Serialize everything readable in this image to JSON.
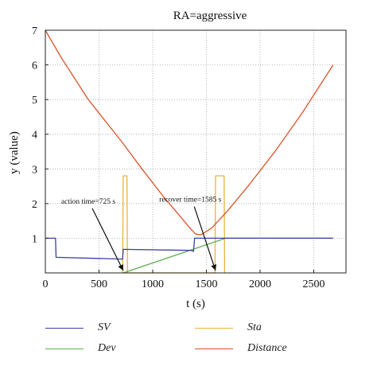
{
  "chart_data": {
    "type": "line",
    "title": "RA=aggressive",
    "xlabel": "t (s)",
    "ylabel": "y (value)",
    "xlim": [
      0,
      2800
    ],
    "ylim": [
      0,
      7
    ],
    "xticks": [
      0,
      500,
      1000,
      1500,
      2000,
      2500
    ],
    "yticks": [
      1,
      2,
      3,
      4,
      5,
      6,
      7
    ],
    "grid": "dotted",
    "legend_placement": "bottom",
    "series": [
      {
        "name": "SV",
        "color": "#3b3fa0",
        "points": [
          [
            0,
            1.0
          ],
          [
            95,
            1.0
          ],
          [
            100,
            0.45
          ],
          [
            710,
            0.4
          ],
          [
            720,
            0.4
          ],
          [
            725,
            0.68
          ],
          [
            1360,
            0.65
          ],
          [
            1380,
            0.62
          ],
          [
            1390,
            1.0
          ],
          [
            2680,
            1.0
          ]
        ]
      },
      {
        "name": "Dev",
        "color": "#5fae4e",
        "points": [
          [
            725,
            0.0
          ],
          [
            1680,
            1.0
          ],
          [
            2680,
            1.0
          ]
        ]
      },
      {
        "name": "Sta",
        "color": "#e6b53a",
        "points": [
          [
            720,
            0.0
          ],
          [
            725,
            2.8
          ],
          [
            760,
            2.8
          ],
          [
            765,
            0.0
          ],
          [
            1580,
            0.0
          ],
          [
            1585,
            2.8
          ],
          [
            1665,
            2.8
          ],
          [
            1670,
            0.0
          ]
        ]
      },
      {
        "name": "Distance",
        "color": "#d9542a",
        "points": [
          [
            0,
            7.0
          ],
          [
            150,
            6.2
          ],
          [
            400,
            5.0
          ],
          [
            720,
            3.75
          ],
          [
            900,
            3.0
          ],
          [
            1100,
            2.2
          ],
          [
            1250,
            1.65
          ],
          [
            1350,
            1.28
          ],
          [
            1400,
            1.12
          ],
          [
            1450,
            1.1
          ],
          [
            1550,
            1.3
          ],
          [
            1700,
            1.8
          ],
          [
            1900,
            2.55
          ],
          [
            2150,
            3.55
          ],
          [
            2400,
            4.65
          ],
          [
            2680,
            6.0
          ]
        ]
      }
    ],
    "annotations": [
      {
        "text": "action time=725 s",
        "x": 725,
        "y": 0.0,
        "label_x": 400,
        "label_y": 2.0
      },
      {
        "text": "recover time=1585 s",
        "x": 1585,
        "y": 0.0,
        "label_x": 1350,
        "label_y": 2.05
      }
    ]
  }
}
